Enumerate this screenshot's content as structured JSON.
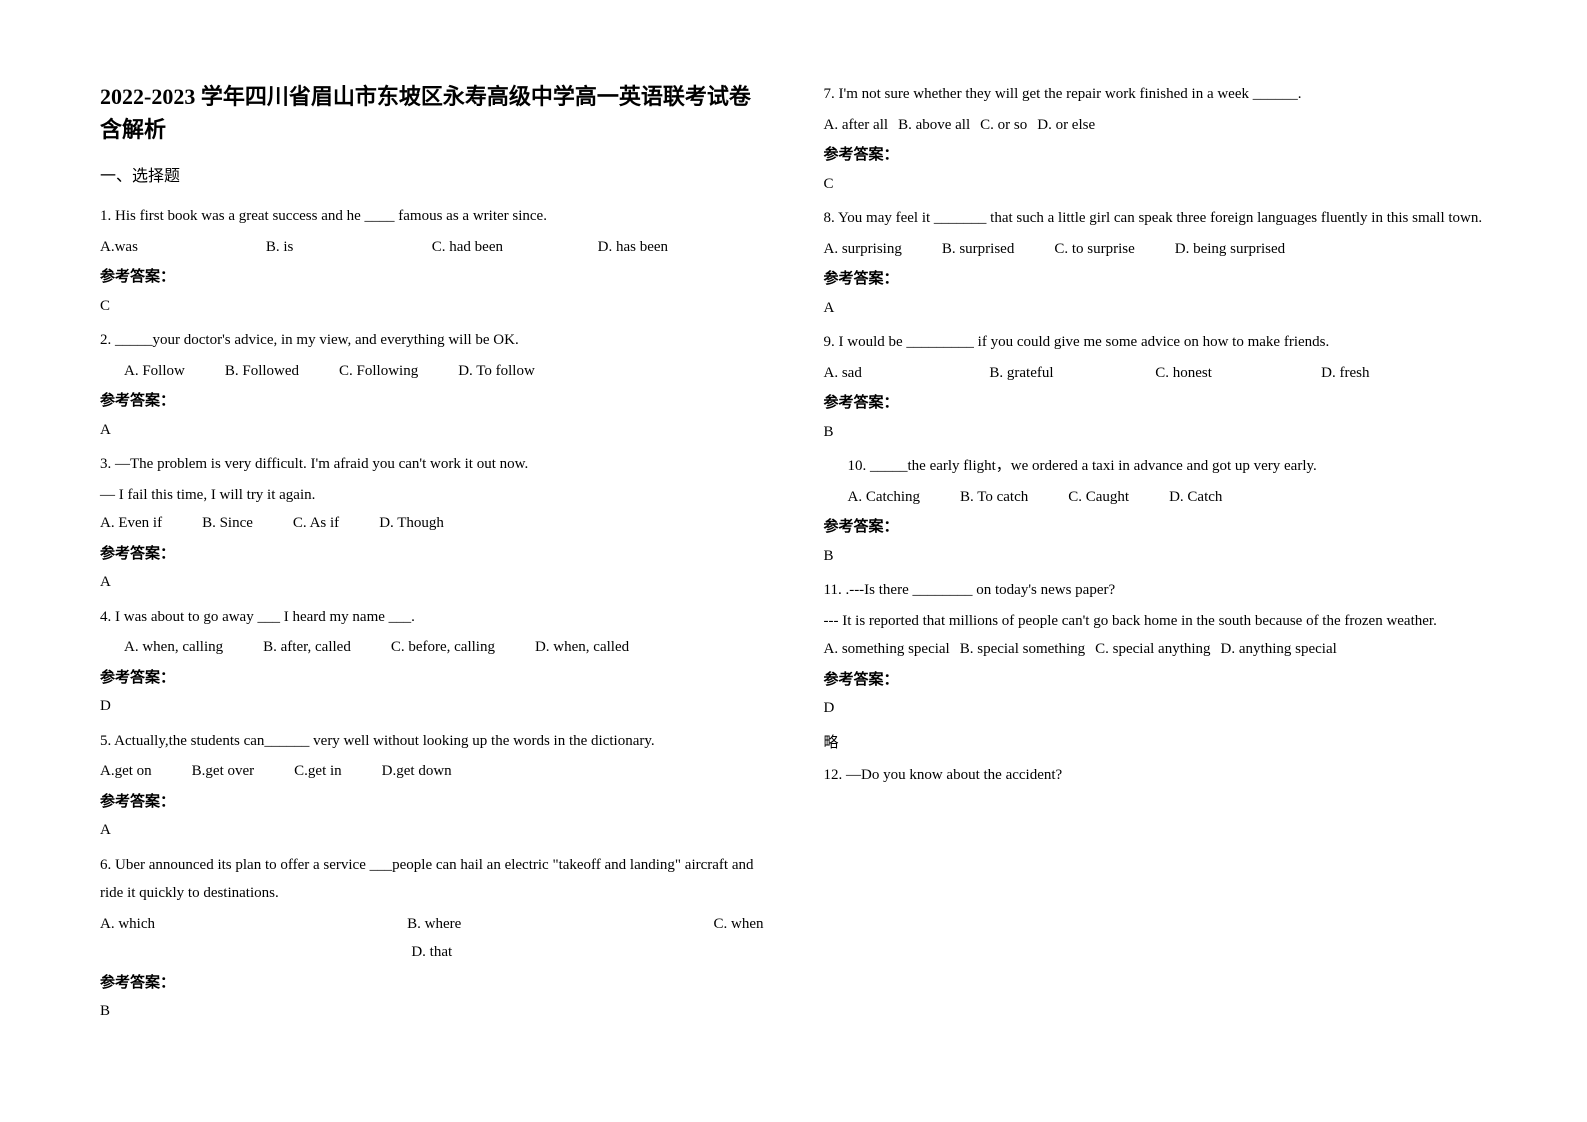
{
  "title": "2022-2023 学年四川省眉山市东坡区永寿高级中学高一英语联考试卷含解析",
  "section_label": "一、选择题",
  "answer_label": "参考答案：",
  "questions": [
    {
      "num": "1.",
      "stem": "His first book was a great success and he ____ famous as a writer since.",
      "opts": [
        "A.was",
        "B. is",
        "C. had been",
        "D. has been"
      ],
      "opts_class": "wide",
      "ans": "C"
    },
    {
      "num": "2.",
      "stem": "_____your doctor's advice, in my view, and everything will be OK.",
      "opts": [
        "A. Follow",
        "B. Followed",
        "C. Following",
        "D. To follow"
      ],
      "opts_indent": true,
      "ans": "A"
    },
    {
      "num": "3.",
      "stem": "—The problem is very difficult. I'm afraid you can't work it out now.",
      "sub": "—      I fail this time, I will try it again.",
      "opts": [
        "A. Even if",
        "B. Since",
        "C. As if",
        "D. Though"
      ],
      "ans": "A"
    },
    {
      "num": "4.",
      "stem": "I was about to go away ___ I heard my name ___.",
      "opts": [
        "A. when, calling",
        "B. after, called",
        "C. before, calling",
        "D. when, called"
      ],
      "opts_indent": true,
      "ans": "D"
    },
    {
      "num": "5.",
      "stem": "Actually,the students can______ very well without looking up the words in the dictionary.",
      "opts": [
        "A.get on",
        "B.get over",
        "C.get in",
        "D.get down"
      ],
      "ans": "A"
    },
    {
      "num": "6.",
      "stem": "Uber announced its plan to offer a service ___people can hail an electric \"takeoff and landing\" aircraft and ride it quickly to destinations.",
      "opts_split": [
        [
          "A. which",
          "B. where",
          "C. when"
        ],
        [
          "D. that"
        ]
      ],
      "ans": "B"
    },
    {
      "num": "7.",
      "stem": "I'm not sure whether they will get the repair work finished in a week ______.",
      "opts": [
        "A. after all",
        "B. above all",
        "C. or so",
        "D. or else"
      ],
      "opts_tight": true,
      "ans": "C"
    },
    {
      "num": "8.",
      "stem": "You may feel it _______ that such a little girl can speak three foreign languages fluently in this small town.",
      "opts": [
        "A. surprising",
        "B. surprised",
        "C. to surprise",
        "D. being surprised"
      ],
      "ans": "A"
    },
    {
      "num": "9.",
      "stem": "I would be _________ if you could give me some advice on how to make friends.",
      "opts": [
        "A. sad",
        "B. grateful",
        "C. honest",
        "D. fresh"
      ],
      "opts_class": "wide",
      "ans": "B"
    },
    {
      "num": "10.",
      "indent": true,
      "stem": "_____the early flight，we ordered a taxi in advance and got up very early.",
      "opts": [
        "A. Catching",
        "B. To catch",
        "C. Caught",
        "D. Catch"
      ],
      "opts_indent": true,
      "ans": "B"
    },
    {
      "num": "11.",
      "stem": ".---Is there ________ on today's news paper?",
      "sub": "--- It is reported that millions of people can't go back home in the south because of the frozen weather.",
      "opts": [
        "A.  something special",
        "B. special something",
        "C. special anything",
        "D. anything special"
      ],
      "opts_tight": true,
      "ans": "D",
      "extra": "略"
    },
    {
      "num": "12.",
      "stem": "―Do you know about the accident?"
    }
  ]
}
